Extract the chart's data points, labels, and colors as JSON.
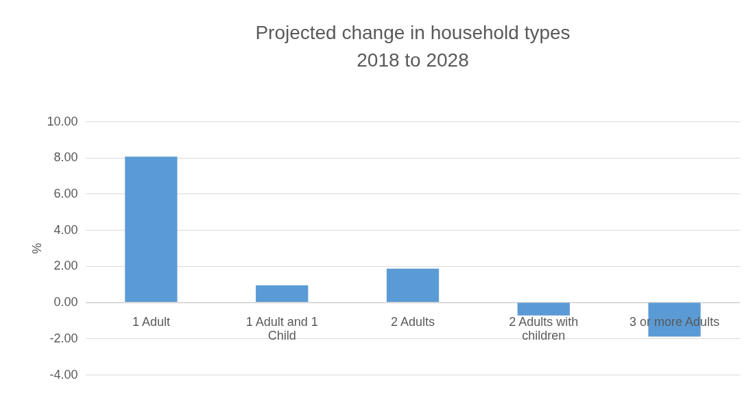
{
  "chart_data": {
    "type": "bar",
    "title": "Projected change in household types\n2018 to 2028",
    "ylabel": "%",
    "categories": [
      "1 Adult",
      "1 Adult and 1 Child",
      "2 Adults",
      "2 Adults with children",
      "3 or more Adults"
    ],
    "values": [
      8.06,
      0.94,
      1.86,
      -0.73,
      -1.89
    ],
    "color": "#5b9bd5",
    "ylim": [
      -4,
      10
    ],
    "yticks": [
      {
        "value": -4,
        "label": "-4.00"
      },
      {
        "value": -2,
        "label": "-2.00"
      },
      {
        "value": 0,
        "label": "0.00"
      },
      {
        "value": 2,
        "label": "2.00"
      },
      {
        "value": 4,
        "label": "4.00"
      },
      {
        "value": 6,
        "label": "6.00"
      },
      {
        "value": 8,
        "label": "8.00"
      },
      {
        "value": 10,
        "label": "10.00"
      }
    ],
    "grid": "y"
  }
}
